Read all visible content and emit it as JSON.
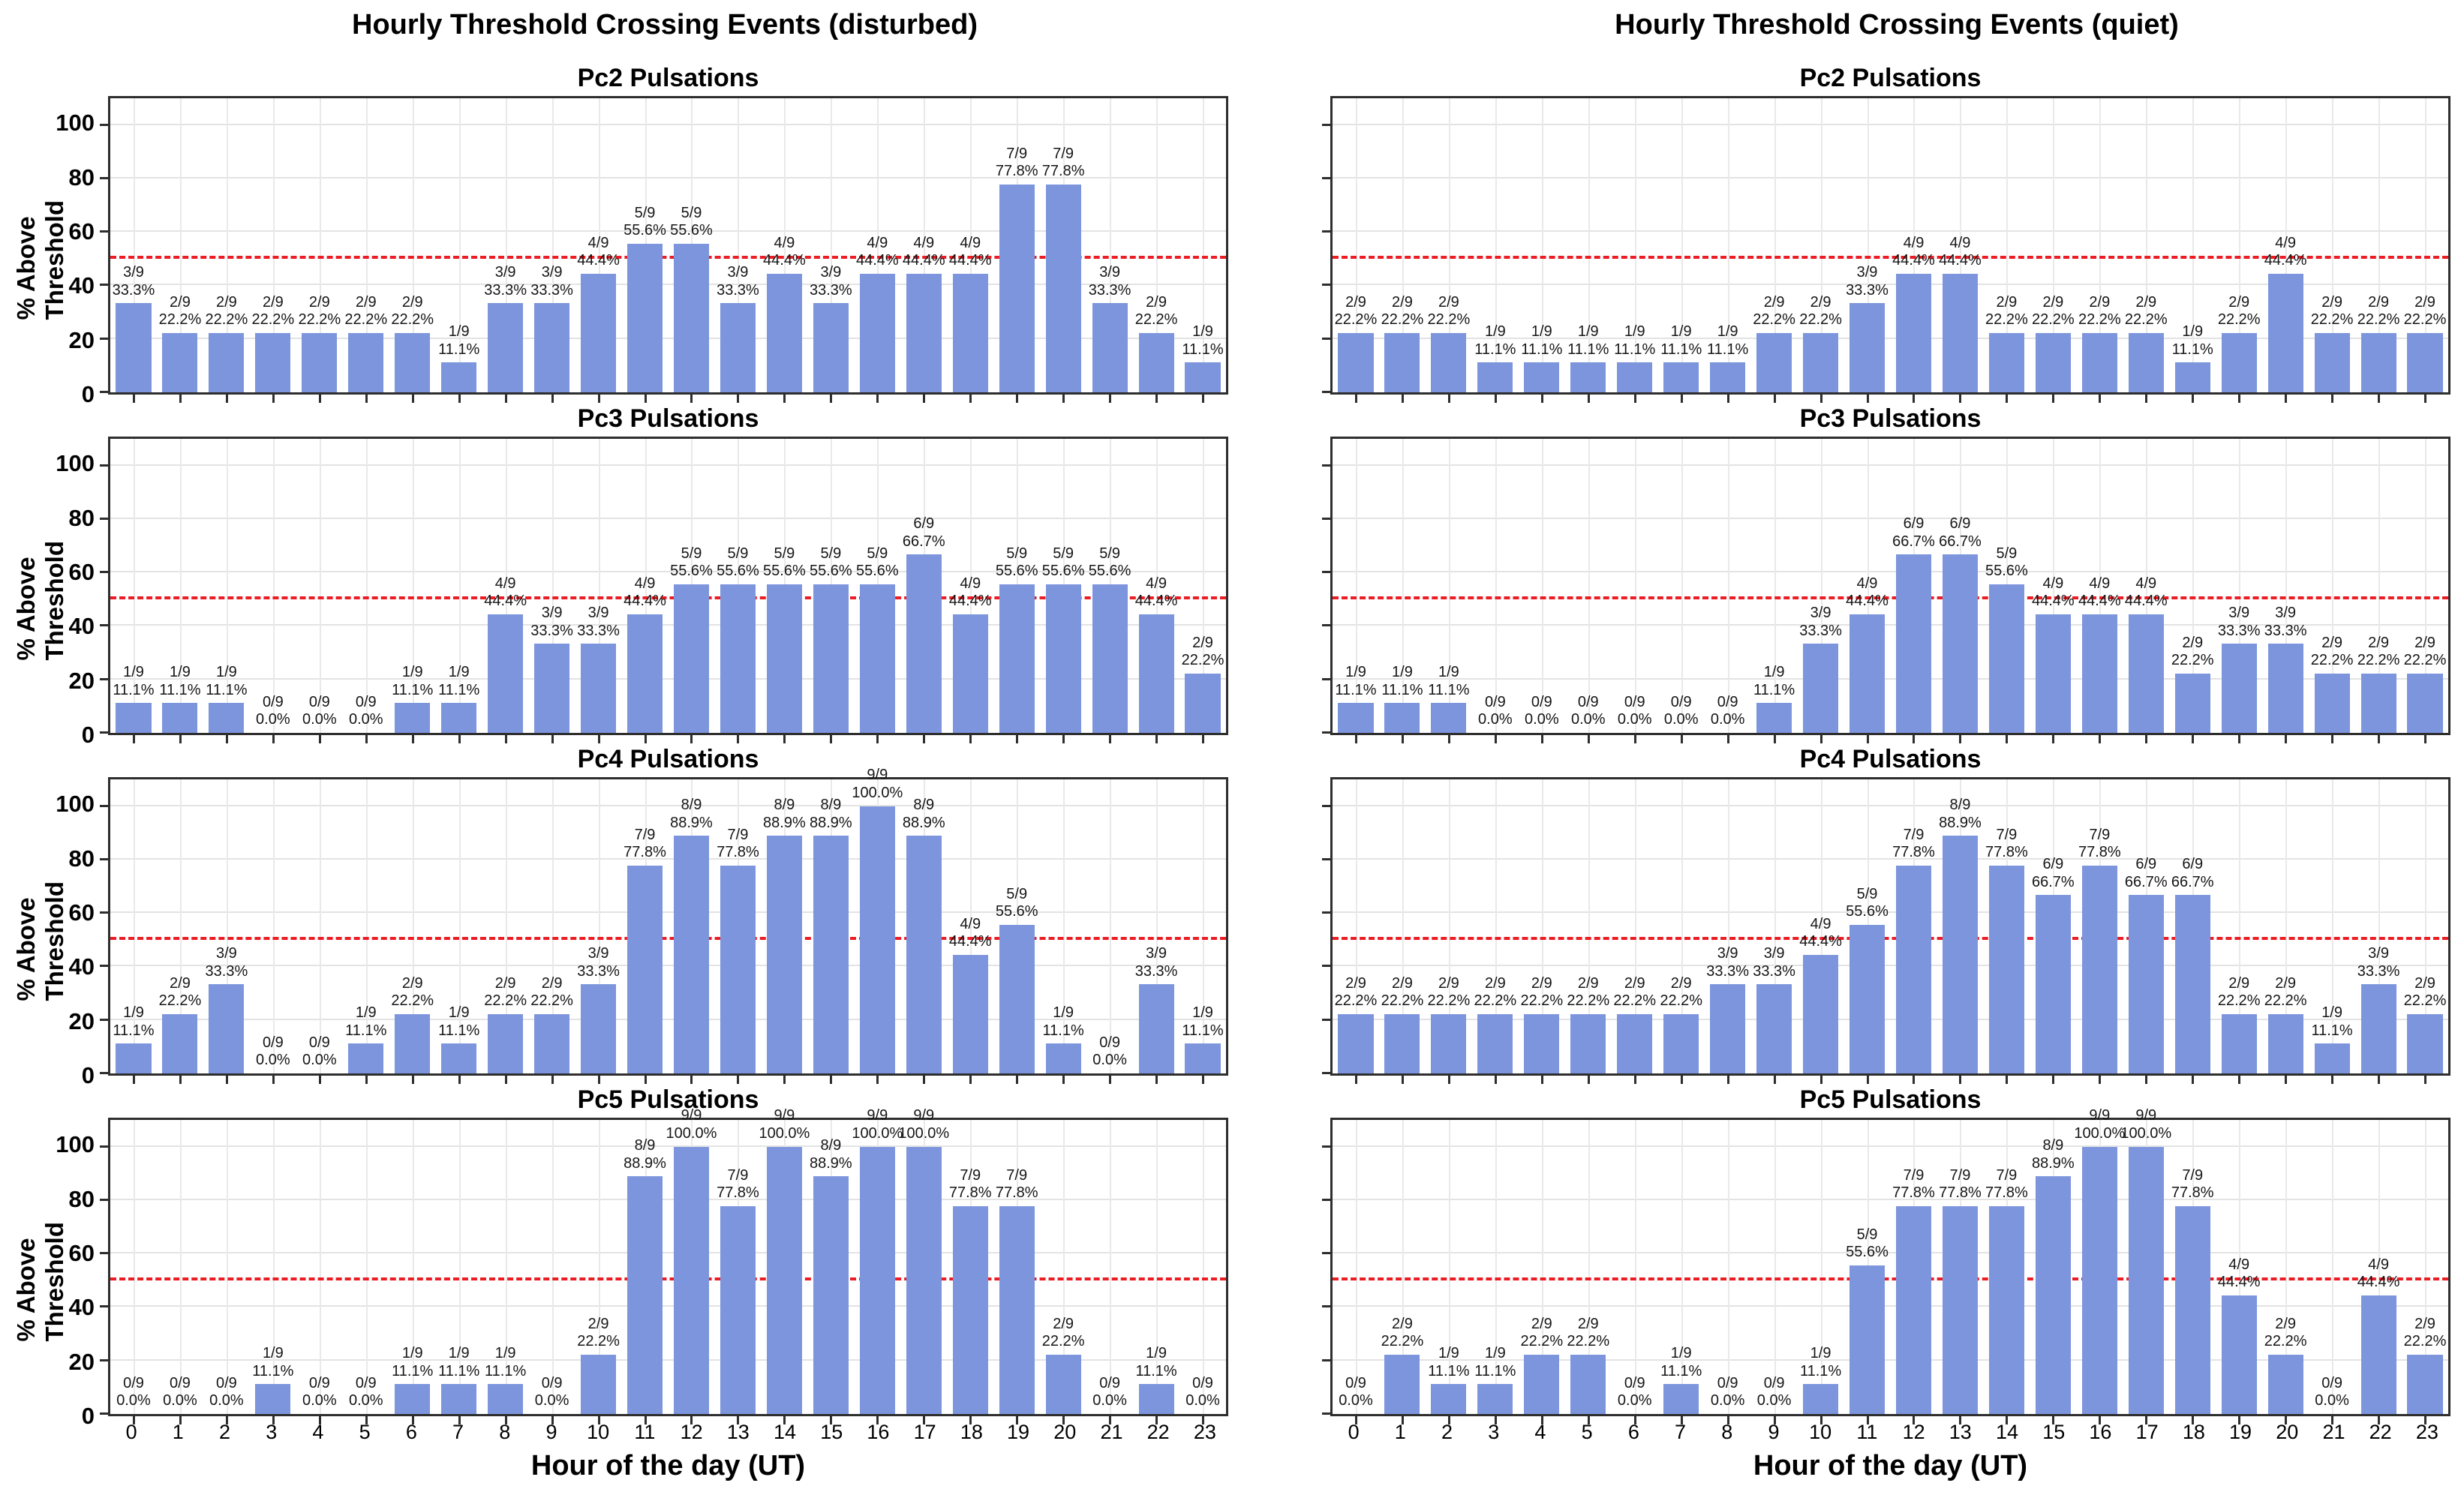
{
  "page": {
    "suptitle_left": "Hourly Threshold Crossing Events (disturbed)",
    "suptitle_right": "Hourly Threshold Crossing Events (quiet)",
    "xlabel": "Hour of the day (UT)",
    "ylabel": "% Above Threshold",
    "threshold_pct": 50,
    "colors": {
      "bar": "#7c95dd",
      "threshold_line": "#ec1c24",
      "grid": "#e3e3e3",
      "frame": "#2e2e2e"
    }
  },
  "chart_data": [
    {
      "type": "bar",
      "condition": "disturbed",
      "title": "Pc2 Pulsations",
      "categories": [
        0,
        1,
        2,
        3,
        4,
        5,
        6,
        7,
        8,
        9,
        10,
        11,
        12,
        13,
        14,
        15,
        16,
        17,
        18,
        19,
        20,
        21,
        22,
        23
      ],
      "counts": [
        3,
        2,
        2,
        2,
        2,
        2,
        2,
        1,
        3,
        3,
        4,
        5,
        5,
        3,
        4,
        3,
        4,
        4,
        4,
        7,
        7,
        3,
        2,
        1
      ],
      "values": [
        33.3,
        22.2,
        22.2,
        22.2,
        22.2,
        22.2,
        22.2,
        11.1,
        33.3,
        33.3,
        44.4,
        55.6,
        55.6,
        33.3,
        44.4,
        33.3,
        44.4,
        44.4,
        44.4,
        77.8,
        77.8,
        33.3,
        22.2,
        11.1
      ],
      "total": 9,
      "ylim": [
        0,
        110
      ],
      "yticks": [
        0,
        20,
        40,
        60,
        80,
        100
      ],
      "threshold": 50
    },
    {
      "type": "bar",
      "condition": "quiet",
      "title": "Pc2 Pulsations",
      "categories": [
        0,
        1,
        2,
        3,
        4,
        5,
        6,
        7,
        8,
        9,
        10,
        11,
        12,
        13,
        14,
        15,
        16,
        17,
        18,
        19,
        20,
        21,
        22,
        23
      ],
      "counts": [
        2,
        2,
        2,
        1,
        1,
        1,
        1,
        1,
        1,
        2,
        2,
        3,
        4,
        4,
        2,
        2,
        2,
        2,
        1,
        2,
        4,
        2,
        2,
        2
      ],
      "values": [
        22.2,
        22.2,
        22.2,
        11.1,
        11.1,
        11.1,
        11.1,
        11.1,
        11.1,
        22.2,
        22.2,
        33.3,
        44.4,
        44.4,
        22.2,
        22.2,
        22.2,
        22.2,
        11.1,
        22.2,
        44.4,
        22.2,
        22.2,
        22.2
      ],
      "total": 9,
      "ylim": [
        0,
        110
      ],
      "yticks": [
        0,
        20,
        40,
        60,
        80,
        100
      ],
      "threshold": 50
    },
    {
      "type": "bar",
      "condition": "disturbed",
      "title": "Pc3 Pulsations",
      "categories": [
        0,
        1,
        2,
        3,
        4,
        5,
        6,
        7,
        8,
        9,
        10,
        11,
        12,
        13,
        14,
        15,
        16,
        17,
        18,
        19,
        20,
        21,
        22,
        23
      ],
      "counts": [
        1,
        1,
        1,
        0,
        0,
        0,
        1,
        1,
        4,
        3,
        3,
        4,
        5,
        5,
        5,
        5,
        5,
        6,
        4,
        5,
        5,
        5,
        4,
        2
      ],
      "values": [
        11.1,
        11.1,
        11.1,
        0.0,
        0.0,
        0.0,
        11.1,
        11.1,
        44.4,
        33.3,
        33.3,
        44.4,
        55.6,
        55.6,
        55.6,
        55.6,
        55.6,
        66.7,
        44.4,
        55.6,
        55.6,
        55.6,
        44.4,
        22.2
      ],
      "total": 9,
      "ylim": [
        0,
        110
      ],
      "yticks": [
        0,
        20,
        40,
        60,
        80,
        100
      ],
      "threshold": 50
    },
    {
      "type": "bar",
      "condition": "quiet",
      "title": "Pc3 Pulsations",
      "categories": [
        0,
        1,
        2,
        3,
        4,
        5,
        6,
        7,
        8,
        9,
        10,
        11,
        12,
        13,
        14,
        15,
        16,
        17,
        18,
        19,
        20,
        21,
        22,
        23
      ],
      "counts": [
        1,
        1,
        1,
        0,
        0,
        0,
        0,
        0,
        0,
        1,
        3,
        4,
        6,
        6,
        5,
        4,
        4,
        4,
        2,
        3,
        3,
        2,
        2,
        2
      ],
      "values": [
        11.1,
        11.1,
        11.1,
        0.0,
        0.0,
        0.0,
        0.0,
        0.0,
        0.0,
        11.1,
        33.3,
        44.4,
        66.7,
        66.7,
        55.6,
        44.4,
        44.4,
        44.4,
        22.2,
        33.3,
        33.3,
        22.2,
        22.2,
        22.2
      ],
      "total": 9,
      "ylim": [
        0,
        110
      ],
      "yticks": [
        0,
        20,
        40,
        60,
        80,
        100
      ],
      "threshold": 50
    },
    {
      "type": "bar",
      "condition": "disturbed",
      "title": "Pc4 Pulsations",
      "categories": [
        0,
        1,
        2,
        3,
        4,
        5,
        6,
        7,
        8,
        9,
        10,
        11,
        12,
        13,
        14,
        15,
        16,
        17,
        18,
        19,
        20,
        21,
        22,
        23
      ],
      "counts": [
        1,
        2,
        3,
        0,
        0,
        1,
        2,
        1,
        2,
        2,
        3,
        7,
        8,
        7,
        8,
        8,
        9,
        8,
        4,
        5,
        1,
        0,
        3,
        1
      ],
      "values": [
        11.1,
        22.2,
        33.3,
        0.0,
        0.0,
        11.1,
        22.2,
        11.1,
        22.2,
        22.2,
        33.3,
        77.8,
        88.9,
        77.8,
        88.9,
        88.9,
        100.0,
        88.9,
        44.4,
        55.6,
        11.1,
        0.0,
        33.3,
        11.1
      ],
      "total": 9,
      "ylim": [
        0,
        110
      ],
      "yticks": [
        0,
        20,
        40,
        60,
        80,
        100
      ],
      "threshold": 50
    },
    {
      "type": "bar",
      "condition": "quiet",
      "title": "Pc4 Pulsations",
      "categories": [
        0,
        1,
        2,
        3,
        4,
        5,
        6,
        7,
        8,
        9,
        10,
        11,
        12,
        13,
        14,
        15,
        16,
        17,
        18,
        19,
        20,
        21,
        22,
        23
      ],
      "counts": [
        2,
        2,
        2,
        2,
        2,
        2,
        2,
        2,
        3,
        3,
        4,
        5,
        7,
        8,
        7,
        6,
        7,
        6,
        6,
        2,
        2,
        1,
        3,
        2
      ],
      "values": [
        22.2,
        22.2,
        22.2,
        22.2,
        22.2,
        22.2,
        22.2,
        22.2,
        33.3,
        33.3,
        44.4,
        55.6,
        77.8,
        88.9,
        77.8,
        66.7,
        77.8,
        66.7,
        66.7,
        22.2,
        22.2,
        11.1,
        33.3,
        22.2
      ],
      "total": 9,
      "ylim": [
        0,
        110
      ],
      "yticks": [
        0,
        20,
        40,
        60,
        80,
        100
      ],
      "threshold": 50
    },
    {
      "type": "bar",
      "condition": "disturbed",
      "title": "Pc5 Pulsations",
      "categories": [
        0,
        1,
        2,
        3,
        4,
        5,
        6,
        7,
        8,
        9,
        10,
        11,
        12,
        13,
        14,
        15,
        16,
        17,
        18,
        19,
        20,
        21,
        22,
        23
      ],
      "counts": [
        0,
        0,
        0,
        1,
        0,
        0,
        1,
        1,
        1,
        0,
        2,
        8,
        9,
        7,
        9,
        8,
        9,
        9,
        7,
        7,
        2,
        0,
        1,
        0
      ],
      "values": [
        0.0,
        0.0,
        0.0,
        11.1,
        0.0,
        0.0,
        11.1,
        11.1,
        11.1,
        0.0,
        22.2,
        88.9,
        100.0,
        77.8,
        100.0,
        88.9,
        100.0,
        100.0,
        77.8,
        77.8,
        22.2,
        0.0,
        11.1,
        0.0
      ],
      "total": 9,
      "ylim": [
        0,
        110
      ],
      "yticks": [
        0,
        20,
        40,
        60,
        80,
        100
      ],
      "threshold": 50
    },
    {
      "type": "bar",
      "condition": "quiet",
      "title": "Pc5 Pulsations",
      "categories": [
        0,
        1,
        2,
        3,
        4,
        5,
        6,
        7,
        8,
        9,
        10,
        11,
        12,
        13,
        14,
        15,
        16,
        17,
        18,
        19,
        20,
        21,
        22,
        23
      ],
      "counts": [
        0,
        2,
        1,
        1,
        2,
        2,
        0,
        1,
        0,
        0,
        1,
        5,
        7,
        7,
        7,
        8,
        9,
        9,
        7,
        4,
        2,
        0,
        4,
        2
      ],
      "values": [
        0.0,
        22.2,
        11.1,
        11.1,
        22.2,
        22.2,
        0.0,
        11.1,
        0.0,
        0.0,
        11.1,
        55.6,
        77.8,
        77.8,
        77.8,
        88.9,
        100.0,
        100.0,
        77.8,
        44.4,
        22.2,
        0.0,
        44.4,
        22.2
      ],
      "total": 9,
      "ylim": [
        0,
        110
      ],
      "yticks": [
        0,
        20,
        40,
        60,
        80,
        100
      ],
      "threshold": 50
    }
  ]
}
